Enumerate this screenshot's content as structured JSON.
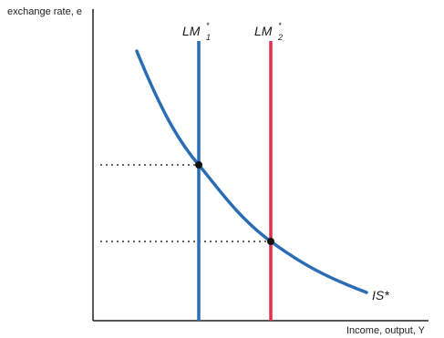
{
  "diagram": {
    "y_axis_label": "exchange rate, e",
    "x_axis_label": "Income, output, Y",
    "lm1": {
      "base": "LM",
      "sup": "*",
      "sub": "1",
      "color": "#2a6db5"
    },
    "lm2": {
      "base": "LM",
      "sup": "*",
      "sub": "2",
      "color": "#e0314f"
    },
    "is_curve": {
      "label": "IS*",
      "color": "#2a6db5"
    },
    "axis_color": "#222222",
    "guide_color": "#333333",
    "point_color": "#111111"
  }
}
